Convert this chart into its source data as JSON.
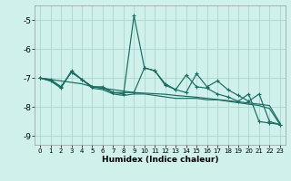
{
  "xlabel": "Humidex (Indice chaleur)",
  "bg_color": "#cff0eb",
  "grid_color": "#aad8d0",
  "line_color": "#1a6b60",
  "xlim": [
    -0.5,
    23.5
  ],
  "ylim": [
    -9.3,
    -4.5
  ],
  "yticks": [
    -9,
    -8,
    -7,
    -6,
    -5
  ],
  "xticks": [
    0,
    1,
    2,
    3,
    4,
    5,
    6,
    7,
    8,
    9,
    10,
    11,
    12,
    13,
    14,
    15,
    16,
    17,
    18,
    19,
    20,
    21,
    22,
    23
  ],
  "series1_x": [
    0,
    1,
    2,
    3,
    4,
    5,
    6,
    7,
    8,
    9,
    10,
    11,
    12,
    13,
    14,
    15,
    16,
    17,
    18,
    19,
    20,
    21,
    22,
    23
  ],
  "series1_y": [
    -7.0,
    -7.1,
    -7.35,
    -6.75,
    -7.05,
    -7.3,
    -7.3,
    -7.5,
    -7.55,
    -4.85,
    -6.65,
    -6.75,
    -7.25,
    -7.4,
    -7.5,
    -6.85,
    -7.3,
    -7.1,
    -7.4,
    -7.6,
    -7.8,
    -7.55,
    -8.5,
    -8.6
  ],
  "series2_x": [
    0,
    1,
    2,
    3,
    4,
    5,
    6,
    7,
    8,
    9,
    10,
    11,
    12,
    13,
    14,
    15,
    16,
    17,
    18,
    19,
    20,
    21,
    22,
    23
  ],
  "series2_y": [
    -7.0,
    -7.05,
    -7.1,
    -7.15,
    -7.2,
    -7.3,
    -7.35,
    -7.4,
    -7.45,
    -7.5,
    -7.52,
    -7.54,
    -7.56,
    -7.6,
    -7.63,
    -7.66,
    -7.7,
    -7.74,
    -7.78,
    -7.82,
    -7.86,
    -7.9,
    -7.95,
    -8.55
  ],
  "series3_x": [
    0,
    1,
    2,
    3,
    4,
    5,
    6,
    7,
    8,
    9,
    10,
    11,
    12,
    13,
    14,
    15,
    16,
    17,
    18,
    19,
    20,
    21,
    22,
    23
  ],
  "series3_y": [
    -7.0,
    -7.05,
    -7.3,
    -6.8,
    -7.05,
    -7.3,
    -7.35,
    -7.5,
    -7.5,
    -7.5,
    -6.65,
    -6.75,
    -7.2,
    -7.4,
    -6.9,
    -7.3,
    -7.35,
    -7.55,
    -7.65,
    -7.8,
    -7.55,
    -8.5,
    -8.55,
    -8.6
  ],
  "series4_x": [
    0,
    1,
    2,
    3,
    4,
    5,
    6,
    7,
    8,
    9,
    10,
    11,
    12,
    13,
    14,
    15,
    16,
    17,
    18,
    19,
    20,
    21,
    22,
    23
  ],
  "series4_y": [
    -7.0,
    -7.1,
    -7.3,
    -6.8,
    -7.05,
    -7.35,
    -7.4,
    -7.55,
    -7.6,
    -7.55,
    -7.55,
    -7.6,
    -7.65,
    -7.7,
    -7.7,
    -7.7,
    -7.75,
    -7.75,
    -7.8,
    -7.85,
    -7.9,
    -7.95,
    -8.05,
    -8.6
  ]
}
